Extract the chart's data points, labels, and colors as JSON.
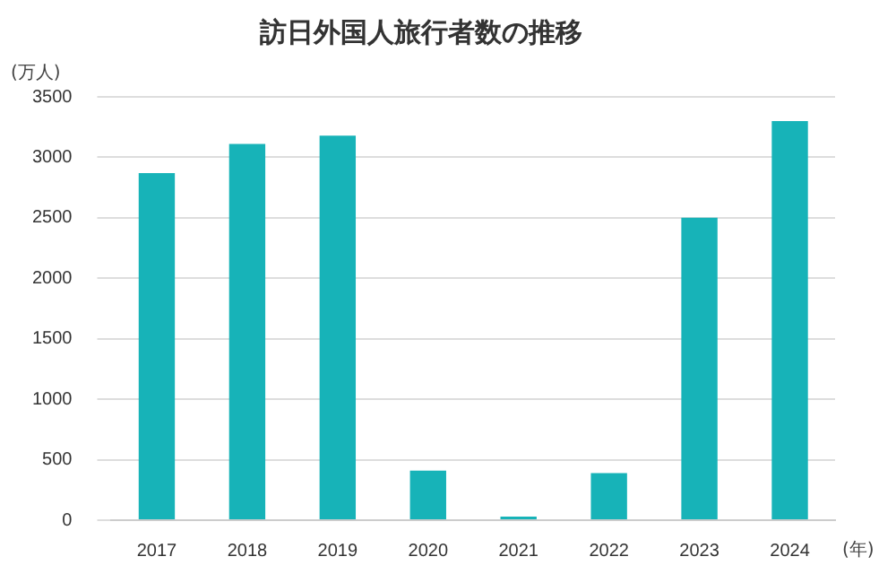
{
  "chart_data": {
    "type": "bar",
    "title": "訪日外国人旅行者数の推移",
    "ylabel": "(万人)",
    "xlabel": "(年)",
    "categories": [
      "2017",
      "2018",
      "2019",
      "2020",
      "2021",
      "2022",
      "2023",
      "2024"
    ],
    "values": [
      2870,
      3110,
      3180,
      410,
      30,
      390,
      2500,
      3300
    ],
    "color": "#17b3b8",
    "ylim": [
      0,
      3500
    ],
    "yticks": [
      0,
      500,
      1000,
      1500,
      2000,
      2500,
      3000,
      3500
    ],
    "grid": "y",
    "legend": false
  }
}
